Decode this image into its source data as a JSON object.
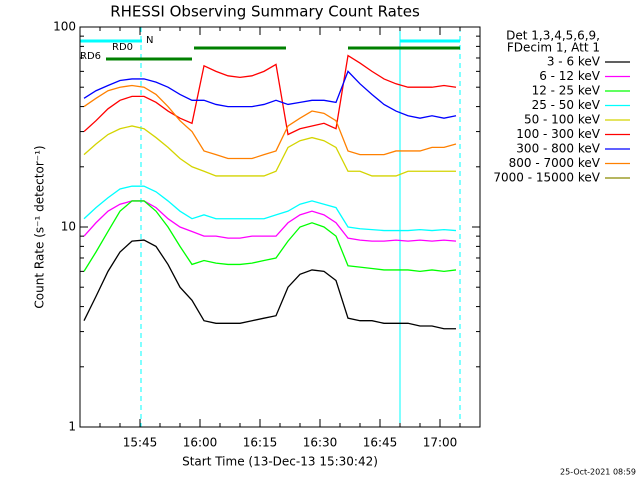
{
  "chart_data": {
    "type": "line",
    "title": "RHESSI Observing Summary Count Rates",
    "xlabel": "Start Time (13-Dec-13 15:30:42)",
    "ylabel": "Count Rate (s⁻¹ detector⁻¹)",
    "footer": "25-Oct-2021 08:59",
    "legend_title": [
      "Det 1,3,4,5,6,9,",
      "FDecim 1, Att 1"
    ],
    "legend": "right",
    "log_y": true,
    "xlim": [
      0,
      100
    ],
    "xticks": [
      {
        "value": 15,
        "label": "15:45"
      },
      {
        "value": 30,
        "label": "16:00"
      },
      {
        "value": 45,
        "label": "16:15"
      },
      {
        "value": 60,
        "label": "16:30"
      },
      {
        "value": 75,
        "label": "16:45"
      },
      {
        "value": 90,
        "label": "17:00"
      }
    ],
    "xticks_minor": [
      5,
      10,
      20,
      25,
      35,
      40,
      50,
      55,
      65,
      70,
      80,
      85,
      95
    ],
    "ylim": [
      1,
      100
    ],
    "yticks": [
      1,
      10,
      100
    ],
    "yticks_minor": [
      2,
      3,
      4,
      5,
      6,
      7,
      8,
      9,
      20,
      30,
      40,
      50,
      60,
      70,
      80,
      90
    ],
    "vlines": [
      {
        "x": 0,
        "dashed": false,
        "color": "#00ffff"
      },
      {
        "x": 15.25,
        "dashed": true,
        "color": "#00ffff"
      },
      {
        "x": 80,
        "dashed": false,
        "color": "#00ffff"
      },
      {
        "x": 95,
        "dashed": true,
        "color": "#00ffff"
      }
    ],
    "flags": [
      {
        "name": "N",
        "color": "#00ffff",
        "intervals": [
          [
            0,
            15.5
          ],
          [
            80,
            95
          ]
        ]
      },
      {
        "name": "RD0",
        "color": "#008000",
        "intervals": [
          [
            28.5,
            51.5
          ],
          [
            67,
            95
          ]
        ]
      },
      {
        "name": "RD6",
        "color": "#008000",
        "intervals": [
          [
            6.5,
            28
          ]
        ]
      }
    ],
    "x": [
      1,
      4,
      7,
      10,
      13,
      16,
      19,
      22,
      25,
      28,
      31,
      34,
      37,
      40,
      43,
      46,
      49,
      52,
      55,
      58,
      61,
      64,
      67,
      70,
      73,
      76,
      79,
      82,
      85,
      88,
      91,
      94
    ],
    "series": [
      {
        "name": "3 - 6 keV",
        "color": "#000000",
        "values": [
          3.4,
          4.5,
          6,
          7.5,
          8.5,
          8.6,
          8,
          6.5,
          5,
          4.3,
          3.4,
          3.3,
          3.3,
          3.3,
          3.4,
          3.5,
          3.6,
          5,
          5.8,
          6.1,
          6,
          5.4,
          3.5,
          3.4,
          3.4,
          3.3,
          3.3,
          3.3,
          3.2,
          3.2,
          3.1,
          3.1
        ]
      },
      {
        "name": "6 - 12 keV",
        "color": "#ff00ff",
        "values": [
          9,
          10.5,
          12,
          13,
          13.5,
          13.5,
          12.5,
          11,
          10,
          9.5,
          9,
          9,
          8.8,
          8.8,
          9,
          9,
          9,
          10.5,
          11.5,
          12,
          11.5,
          10.5,
          8.8,
          8.6,
          8.5,
          8.5,
          8.6,
          8.5,
          8.6,
          8.5,
          8.6,
          8.5
        ]
      },
      {
        "name": "12 - 25 keV",
        "color": "#00ff00",
        "values": [
          6,
          7.5,
          9.5,
          12,
          13.5,
          13.5,
          12,
          10,
          8,
          6.5,
          6.8,
          6.6,
          6.5,
          6.5,
          6.6,
          6.8,
          7,
          8.5,
          10,
          10.5,
          10,
          9,
          6.4,
          6.3,
          6.2,
          6.1,
          6.1,
          6.1,
          6,
          6.1,
          6,
          6.1
        ]
      },
      {
        "name": "25 - 50 keV",
        "color": "#00ffff",
        "values": [
          11,
          12.5,
          14,
          15.5,
          16,
          16,
          15,
          13.5,
          12,
          11,
          11.5,
          11,
          11,
          11,
          11,
          11,
          11.5,
          12,
          13,
          13.5,
          13,
          12.5,
          10,
          9.8,
          9.7,
          9.6,
          9.6,
          9.6,
          9.7,
          9.6,
          9.7,
          9.6
        ]
      },
      {
        "name": "50 - 100 keV",
        "color": "#d4d400",
        "values": [
          23,
          26,
          29,
          31,
          32,
          31,
          28,
          25,
          22,
          20,
          19,
          18,
          18,
          18,
          18,
          18,
          19,
          25,
          27,
          28,
          27,
          25,
          19,
          19,
          18,
          18,
          18,
          19,
          19,
          19,
          19,
          19
        ]
      },
      {
        "name": "100 - 300 keV",
        "color": "#ff0000",
        "values": [
          30,
          34,
          39,
          43,
          45,
          45,
          42,
          38,
          35,
          33,
          64,
          60,
          57,
          56,
          57,
          60,
          65,
          29,
          31,
          32,
          33,
          31,
          72,
          66,
          60,
          55,
          52,
          50,
          50,
          50,
          51,
          50
        ]
      },
      {
        "name": "300 - 800 keV",
        "color": "#0000ff",
        "values": [
          44,
          48,
          51,
          54,
          55,
          55,
          53,
          50,
          46,
          43,
          43,
          41,
          40,
          40,
          40,
          41,
          43,
          41,
          42,
          43,
          43,
          42,
          60,
          52,
          46,
          41,
          38,
          36,
          35,
          36,
          35,
          36
        ]
      },
      {
        "name": "800 - 7000 keV",
        "color": "#ff8000",
        "values": [
          40,
          44,
          48,
          50,
          51,
          50,
          46,
          40,
          34,
          30,
          24,
          23,
          22,
          22,
          22,
          23,
          24,
          32,
          35,
          38,
          37,
          34,
          24,
          23,
          23,
          23,
          24,
          24,
          24,
          25,
          25,
          26
        ]
      },
      {
        "name": "7000 - 15000 keV",
        "color": "#8b8b00",
        "values": [
          null,
          null,
          null,
          null,
          null,
          null,
          null,
          null,
          null,
          null,
          null,
          null,
          null,
          null,
          null,
          null,
          null,
          null,
          null,
          null,
          null,
          null,
          null,
          null,
          null,
          null,
          null,
          null,
          null,
          null,
          null,
          null
        ]
      }
    ]
  }
}
